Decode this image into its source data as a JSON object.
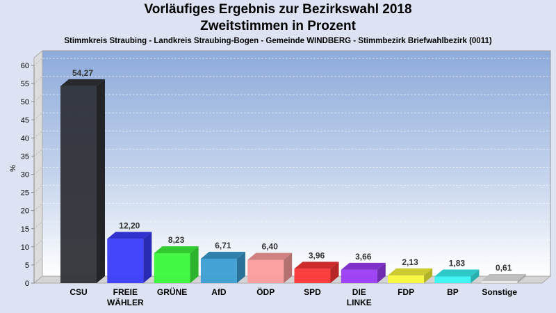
{
  "chart_data": {
    "type": "bar",
    "title": "Vorläufiges Ergebnis zur Bezirkswahl 2018",
    "subtitle": "Zweitstimmen in Prozent",
    "caption": "Stimmkreis Straubing - Landkreis Straubing-Bogen - Gemeinde WINDBERG - Stimmbezirk Briefwahlbezirk (0011)",
    "xlabel": "",
    "ylabel": "%",
    "ylim": [
      0,
      60
    ],
    "yticks": [
      "0",
      "5",
      "10",
      "15",
      "20",
      "25",
      "30",
      "35",
      "40",
      "45",
      "50",
      "55",
      "60"
    ],
    "grid": true,
    "categories": [
      [
        "CSU"
      ],
      [
        "FREIE",
        "WÄHLER"
      ],
      [
        "GRÜNE"
      ],
      [
        "AfD"
      ],
      [
        "ÖDP"
      ],
      [
        "SPD"
      ],
      [
        "DIE",
        "LINKE"
      ],
      [
        "FDP"
      ],
      [
        "BP"
      ],
      [
        "Sonstige"
      ]
    ],
    "values": [
      54.27,
      12.2,
      8.23,
      6.71,
      6.4,
      3.96,
      3.66,
      2.13,
      1.83,
      0.61
    ],
    "value_labels": [
      "54,27",
      "12,20",
      "8,23",
      "6,71",
      "6,40",
      "3,96",
      "3,66",
      "2,13",
      "1,83",
      "0,61"
    ],
    "colors": [
      "#2f3238",
      "#3a3cfb",
      "#3cf83c",
      "#3b9ed3",
      "#fc9c9c",
      "#fb3636",
      "#9b3cf6",
      "#f8f83c",
      "#39f4f4",
      "#e8e8e8"
    ]
  }
}
